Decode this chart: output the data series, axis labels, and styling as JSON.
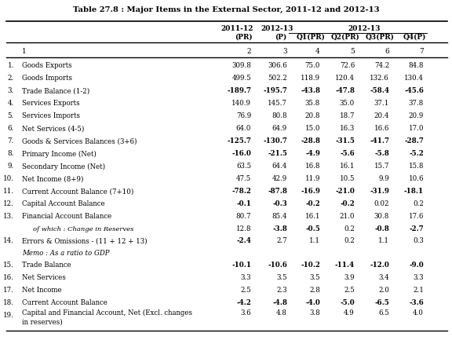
{
  "title": "Table 27.8 : Major Items in the External Sector, 2011-12 and 2012-13",
  "rows": [
    {
      "id": "1.",
      "label": "Goods Exports",
      "vals": [
        "309.8",
        "306.6",
        "75.0",
        "72.6",
        "74.2",
        "84.8"
      ],
      "bold_neg": false
    },
    {
      "id": "2.",
      "label": "Goods Imports",
      "vals": [
        "499.5",
        "502.2",
        "118.9",
        "120.4",
        "132.6",
        "130.4"
      ],
      "bold_neg": false
    },
    {
      "id": "3.",
      "label": "Trade Balance (1-2)",
      "vals": [
        "-189.7",
        "-195.7",
        "-43.8",
        "-47.8",
        "-58.4",
        "-45.6"
      ],
      "bold_neg": true
    },
    {
      "id": "4.",
      "label": "Services Exports",
      "vals": [
        "140.9",
        "145.7",
        "35.8",
        "35.0",
        "37.1",
        "37.8"
      ],
      "bold_neg": false
    },
    {
      "id": "5.",
      "label": "Services Imports",
      "vals": [
        "76.9",
        "80.8",
        "20.8",
        "18.7",
        "20.4",
        "20.9"
      ],
      "bold_neg": false
    },
    {
      "id": "6.",
      "label": "Net Services (4-5)",
      "vals": [
        "64.0",
        "64.9",
        "15.0",
        "16.3",
        "16.6",
        "17.0"
      ],
      "bold_neg": false
    },
    {
      "id": "7.",
      "label": "Goods & Services Balances (3+6)",
      "vals": [
        "-125.7",
        "-130.7",
        "-28.8",
        "-31.5",
        "-41.7",
        "-28.7"
      ],
      "bold_neg": true
    },
    {
      "id": "8.",
      "label": "Primary Income (Net)",
      "vals": [
        "-16.0",
        "-21.5",
        "-4.9",
        "-5.6",
        "-5.8",
        "-5.2"
      ],
      "bold_neg": true
    },
    {
      "id": "9.",
      "label": "Secondary Income (Net)",
      "vals": [
        "63.5",
        "64.4",
        "16.8",
        "16.1",
        "15.7",
        "15.8"
      ],
      "bold_neg": false
    },
    {
      "id": "10.",
      "label": "Net Income (8+9)",
      "vals": [
        "47.5",
        "42.9",
        "11.9",
        "10.5",
        "9.9",
        "10.6"
      ],
      "bold_neg": false
    },
    {
      "id": "11.",
      "label": "Current Account Balance (7+10)",
      "vals": [
        "-78.2",
        "-87.8",
        "-16.9",
        "-21.0",
        "-31.9",
        "-18.1"
      ],
      "bold_neg": true
    },
    {
      "id": "12.",
      "label": "Capital Account Balance",
      "vals": [
        "-0.1",
        "-0.3",
        "-0.2",
        "-0.2",
        "0.02",
        "0.2"
      ],
      "bold_neg": true
    },
    {
      "id": "13.",
      "label": "Financial Account Balance",
      "vals": [
        "80.7",
        "85.4",
        "16.1",
        "21.0",
        "30.8",
        "17.6"
      ],
      "bold_neg": false
    },
    {
      "id": "13b",
      "label": "of which : Change in Reserves",
      "vals": [
        "12.8",
        "-3.8",
        "-0.5",
        "0.2",
        "-0.8",
        "-2.7"
      ],
      "bold_neg": true,
      "italic": true,
      "indent": true
    },
    {
      "id": "14.",
      "label": "Errors & Omissions - (11 + 12 + 13)",
      "vals": [
        "-2.4",
        "2.7",
        "1.1",
        "0.2",
        "1.1",
        "0.3"
      ],
      "bold_neg": true
    },
    {
      "id": "memo",
      "label": "Memo : As a ratio to GDP",
      "vals": [],
      "memo": true
    },
    {
      "id": "15.",
      "label": "Trade Balance",
      "vals": [
        "-10.1",
        "-10.6",
        "-10.2",
        "-11.4",
        "-12.0",
        "-9.0"
      ],
      "bold_neg": true
    },
    {
      "id": "16.",
      "label": "Net Services",
      "vals": [
        "3.3",
        "3.5",
        "3.5",
        "3.9",
        "3.4",
        "3.3"
      ],
      "bold_neg": false
    },
    {
      "id": "17.",
      "label": "Net Income",
      "vals": [
        "2.5",
        "2.3",
        "2.8",
        "2.5",
        "2.0",
        "2.1"
      ],
      "bold_neg": false
    },
    {
      "id": "18.",
      "label": "Current Account Balance",
      "vals": [
        "-4.2",
        "-4.8",
        "-4.0",
        "-5.0",
        "-6.5",
        "-3.6"
      ],
      "bold_neg": true
    },
    {
      "id": "19.",
      "label": "Capital and Financial Account, Net (Excl. changes\nin reserves)",
      "vals": [
        "3.6",
        "4.8",
        "3.8",
        "4.9",
        "6.5",
        "4.0"
      ],
      "bold_neg": false,
      "twolines": true
    }
  ]
}
